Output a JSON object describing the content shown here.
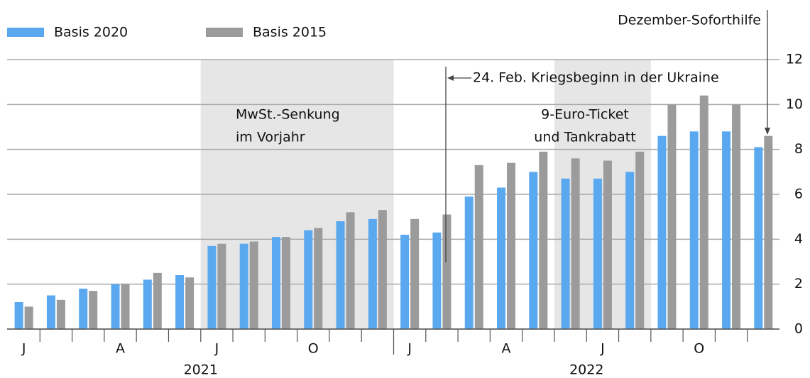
{
  "chart_data": {
    "type": "bar",
    "categories": [
      "J",
      null,
      null,
      "A",
      null,
      null,
      "J",
      null,
      null,
      "O",
      null,
      null,
      "J",
      null,
      null,
      "A",
      null,
      null,
      "J",
      null,
      null,
      "O",
      null,
      null
    ],
    "years": [
      "2021",
      "2022"
    ],
    "series": [
      {
        "name": "Basis 2020",
        "color": "#5aa9f0",
        "values": [
          1.2,
          1.5,
          1.8,
          2.0,
          2.2,
          2.4,
          3.7,
          3.8,
          4.1,
          4.4,
          4.8,
          4.9,
          4.2,
          4.3,
          5.9,
          6.3,
          7.0,
          6.7,
          6.7,
          7.0,
          8.6,
          8.8,
          8.8,
          8.1
        ]
      },
      {
        "name": "Basis 2015",
        "color": "#9b9b9b",
        "values": [
          1.0,
          1.3,
          1.7,
          2.0,
          2.5,
          2.3,
          3.8,
          3.9,
          4.1,
          4.5,
          5.2,
          5.3,
          4.9,
          5.1,
          7.3,
          7.4,
          7.9,
          7.6,
          7.5,
          7.9,
          10.0,
          10.4,
          10.0,
          8.6
        ]
      }
    ],
    "ylim": [
      0,
      12
    ],
    "yticks": [
      0,
      2,
      4,
      6,
      8,
      10,
      12
    ],
    "grid": true,
    "annotations": {
      "vat": [
        "MwSt.-Senkung",
        "im Vorjahr"
      ],
      "ticket": [
        "9-Euro-Ticket",
        "und Tankrabatt"
      ],
      "war": "24. Feb. Kriegsbeginn in der Ukraine",
      "relief": "Dezember-Soforthilfe"
    }
  }
}
